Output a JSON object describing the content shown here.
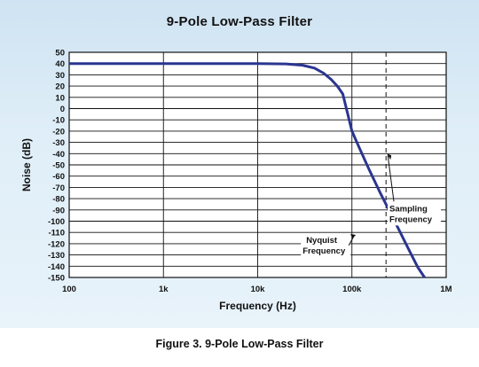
{
  "caption": "Figure 3. 9-Pole Low-Pass Filter",
  "colors": {
    "curve": "#2b3590",
    "grid": "#111111",
    "background_top": "#cfe3f2",
    "plot_bg": "#ffffff"
  },
  "chart_data": {
    "type": "line",
    "title": "9-Pole Low-Pass Filter",
    "xlabel": "Frequency (Hz)",
    "ylabel": "Noise (dB)",
    "xscale": "log",
    "xlim": [
      100,
      1000000
    ],
    "ylim": [
      -150,
      50
    ],
    "grid": true,
    "x_ticks": [
      100,
      1000,
      10000,
      100000,
      1000000
    ],
    "x_tick_labels": [
      "100",
      "1k",
      "10k",
      "100k",
      "1M"
    ],
    "y_ticks": [
      50,
      40,
      30,
      20,
      10,
      0,
      -10,
      -20,
      -30,
      -40,
      -50,
      -60,
      -70,
      -80,
      -90,
      -100,
      -110,
      -120,
      -130,
      -140,
      -150
    ],
    "series": [
      {
        "x": [
          100,
          1000,
          10000,
          20000,
          30000,
          40000,
          50000,
          60000,
          70000,
          80000,
          100000,
          120000,
          150000,
          200000,
          250000,
          300000,
          400000,
          500000,
          590000
        ],
        "y": [
          40,
          40,
          40,
          39.7,
          38.5,
          36,
          31.5,
          26,
          20,
          13,
          -20,
          -35,
          -53,
          -75,
          -91,
          -104,
          -125,
          -141,
          -150
        ]
      }
    ],
    "reference_lines": [
      {
        "x": 230000,
        "style": "dashed"
      }
    ],
    "annotations": [
      {
        "text_lines": [
          "Sampling",
          "Frequency"
        ],
        "x": 250000,
        "y": -92
      },
      {
        "text_lines": [
          "Nyquist",
          "Frequency"
        ],
        "x": 30000,
        "y": -120
      }
    ]
  }
}
